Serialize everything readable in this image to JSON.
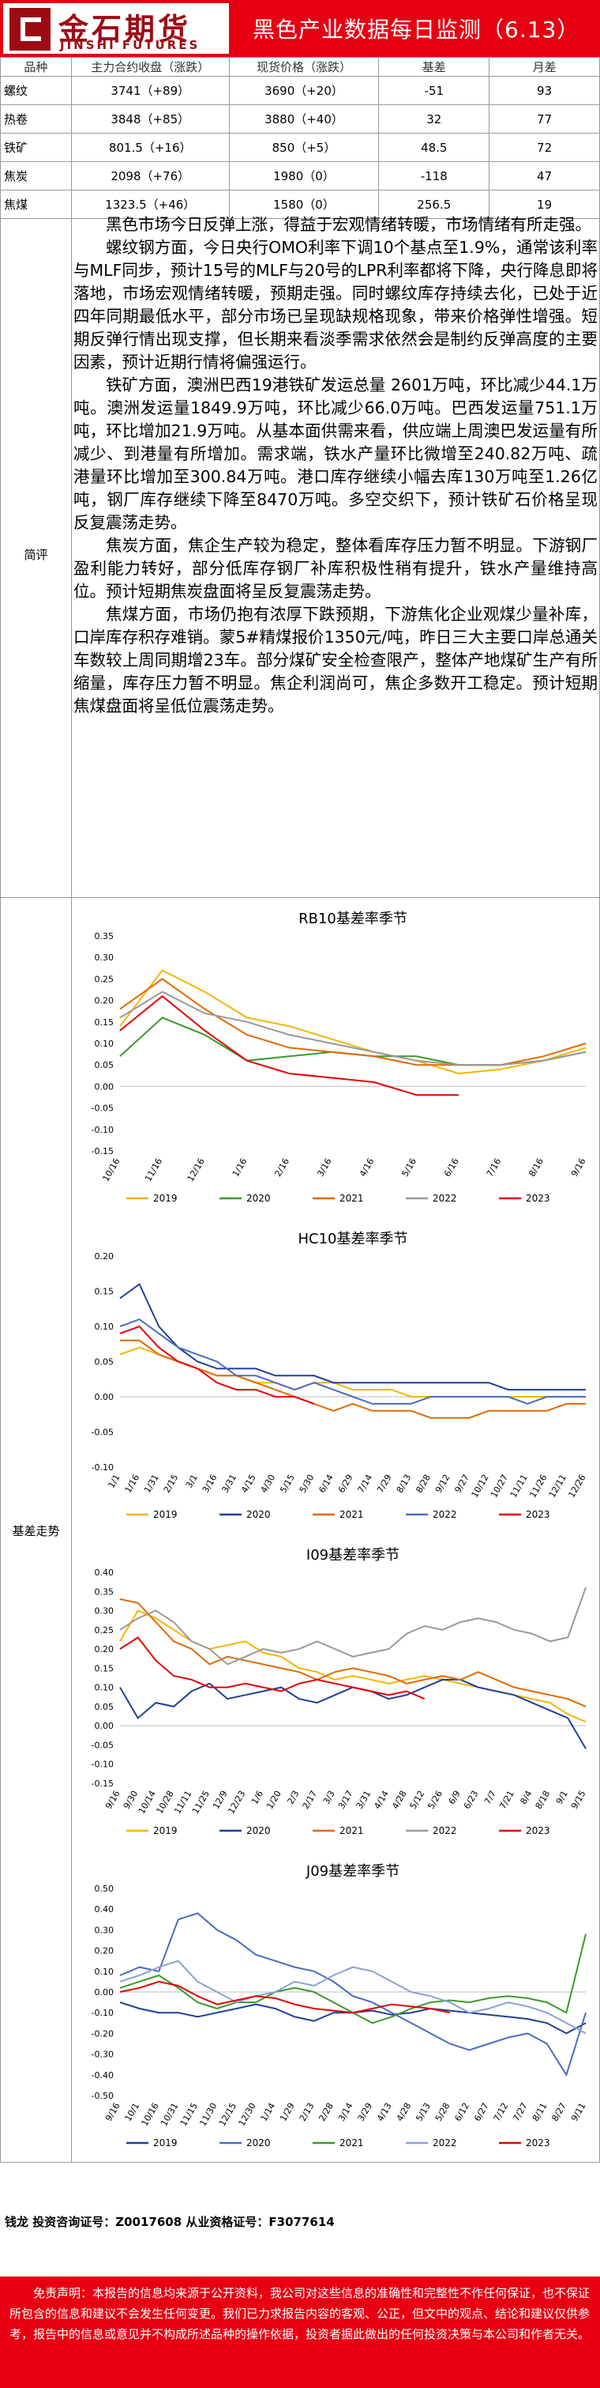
{
  "header": {
    "logo_cn": "金石期货",
    "logo_en": "JINSHI FUTURES",
    "title": "黑色产业数据每日监测（6.13）"
  },
  "price_table": {
    "headers": [
      "品种",
      "主力合约收盘（涨跌）",
      "现货价格（涨跌）",
      "基差",
      "月差"
    ],
    "rows": [
      {
        "name": "螺纹",
        "futures": "3741（+89）",
        "spot": "3690（+20）",
        "basis": "-51",
        "spread": "93"
      },
      {
        "name": "热卷",
        "futures": "3848（+85）",
        "spot": "3880（+40）",
        "basis": "32",
        "spread": "77"
      },
      {
        "name": "铁矿",
        "futures": "801.5（+16）",
        "spot": "850（+5）",
        "basis": "48.5",
        "spread": "72"
      },
      {
        "name": "焦炭",
        "futures": "2098（+76）",
        "spot": "1980（0）",
        "basis": "-118",
        "spread": "47"
      },
      {
        "name": "焦煤",
        "futures": "1323.5（+46）",
        "spot": "1580（0）",
        "basis": "256.5",
        "spread": "19"
      }
    ]
  },
  "commentary": {
    "label": "简评",
    "paragraphs": [
      "黑色市场今日反弹上涨，得益于宏观情绪转暖，市场情绪有所走强。",
      "螺纹钢方面，今日央行OMO利率下调10个基点至1.9%，通常该利率与MLF同步，预计15号的MLF与20号的LPR利率都将下降，央行降息即将落地，市场宏观情绪转暖，预期走强。同时螺纹库存持续去化，已处于近四年同期最低水平，部分市场已呈现缺规格现象，带来价格弹性增强。短期反弹行情出现支撑，但长期来看淡季需求依然会是制约反弹高度的主要因素，预计近期行情将偏强运行。",
      "铁矿方面，澳洲巴西19港铁矿发运总量 2601万吨，环比减少44.1万吨。澳洲发运量1849.9万吨，环比减少66.0万吨。巴西发运量751.1万吨，环比增加21.9万吨。从基本面供需来看，供应端上周澳巴发运量有所减少、到港量有所增加。需求端，铁水产量环比微增至240.82万吨、疏港量环比增加至300.84万吨。港口库存继续小幅去库130万吨至1.26亿吨，钢厂库存继续下降至8470万吨。多空交织下，预计铁矿石价格呈现反复震荡走势。",
      "焦炭方面，焦企生产较为稳定，整体看库存压力暂不明显。下游钢厂盈利能力转好，部分低库存钢厂补库积极性稍有提升，铁水产量维持高位。预计短期焦炭盘面将呈反复震荡走势。",
      "焦煤方面，市场仍抱有浓厚下跌预期，下游焦化企业观煤少量补库，口岸库存积存难销。蒙5#精煤报价1350元/吨，昨日三大主要口岸总通关车数较上周同期增23车。部分煤矿安全检查限产，整体产地煤矿生产有所缩量，库存压力暂不明显。焦企利润尚可，焦企多数开工稳定。预计短期焦煤盘面将呈低位震荡走势。"
    ]
  },
  "basis_section_label": "基差走势",
  "colors": {
    "2019": "#f5b400",
    "2020": "#1f3f99",
    "2021": "#e06a00",
    "2022": "#4a6bc0",
    "2023": "#e60000",
    "2020_alt": "#3a9a2a",
    "2022_alt": "#999999",
    "2021_alt": "#3a9a2a"
  },
  "chart_data": [
    {
      "type": "line",
      "title": "RB10基差率季节",
      "x": [
        "10/16",
        "11/16",
        "12/16",
        "1/16",
        "2/16",
        "3/16",
        "4/16",
        "5/16",
        "6/16",
        "7/16",
        "8/16",
        "9/16"
      ],
      "ylim": [
        -0.15,
        0.35
      ],
      "yticks": [
        -0.15,
        -0.1,
        -0.05,
        0.0,
        0.05,
        0.1,
        0.15,
        0.2,
        0.25,
        0.3,
        0.35
      ],
      "series": [
        {
          "name": "2019",
          "color": "#f5b400",
          "values": [
            0.14,
            0.27,
            0.22,
            0.16,
            0.14,
            0.11,
            0.08,
            0.06,
            0.03,
            0.04,
            0.06,
            0.09
          ]
        },
        {
          "name": "2020",
          "color": "#3a9a2a",
          "values": [
            0.07,
            0.16,
            0.12,
            0.06,
            0.07,
            0.08,
            0.07,
            0.07,
            0.05,
            0.05,
            0.06,
            0.08
          ]
        },
        {
          "name": "2021",
          "color": "#e06a00",
          "values": [
            0.18,
            0.25,
            0.18,
            0.12,
            0.09,
            0.08,
            0.07,
            0.05,
            0.05,
            0.05,
            0.07,
            0.1
          ]
        },
        {
          "name": "2022",
          "color": "#999999",
          "values": [
            0.16,
            0.22,
            0.17,
            0.15,
            0.12,
            0.1,
            0.08,
            0.06,
            0.05,
            0.05,
            0.06,
            0.08
          ]
        },
        {
          "name": "2023",
          "color": "#e60000",
          "values": [
            0.13,
            0.21,
            0.13,
            0.06,
            0.03,
            0.02,
            0.01,
            -0.02,
            -0.02,
            null,
            null,
            null
          ]
        }
      ]
    },
    {
      "type": "line",
      "title": "HC10基差率季节",
      "x": [
        "1/1",
        "1/16",
        "1/31",
        "2/15",
        "3/1",
        "3/16",
        "3/31",
        "4/15",
        "4/30",
        "5/15",
        "5/30",
        "6/14",
        "6/29",
        "7/14",
        "7/29",
        "8/13",
        "8/28",
        "9/12",
        "9/27",
        "10/12",
        "10/27",
        "11/11",
        "11/26",
        "12/11",
        "12/26"
      ],
      "ylim": [
        -0.1,
        0.2
      ],
      "yticks": [
        -0.1,
        -0.05,
        0.0,
        0.05,
        0.1,
        0.15,
        0.2
      ],
      "series": [
        {
          "name": "2019",
          "color": "#f5b400",
          "values": [
            0.06,
            0.07,
            0.06,
            0.05,
            0.04,
            0.03,
            0.03,
            0.02,
            0.02,
            0.01,
            0.02,
            0.02,
            0.01,
            0.01,
            0.01,
            0.0,
            0.0,
            0.0,
            0.0,
            0.0,
            0.0,
            0.0,
            0.0,
            0.0,
            0.0
          ]
        },
        {
          "name": "2020",
          "color": "#1f3f99",
          "values": [
            0.14,
            0.16,
            0.1,
            0.07,
            0.05,
            0.04,
            0.04,
            0.04,
            0.03,
            0.03,
            0.03,
            0.02,
            0.02,
            0.02,
            0.02,
            0.02,
            0.02,
            0.02,
            0.02,
            0.02,
            0.01,
            0.01,
            0.01,
            0.01,
            0.01
          ]
        },
        {
          "name": "2021",
          "color": "#e06a00",
          "values": [
            0.08,
            0.08,
            0.06,
            0.05,
            0.04,
            0.03,
            0.03,
            0.02,
            0.01,
            0.0,
            -0.01,
            -0.02,
            -0.01,
            -0.02,
            -0.02,
            -0.02,
            -0.03,
            -0.03,
            -0.03,
            -0.02,
            -0.02,
            -0.02,
            -0.02,
            -0.01,
            -0.01
          ]
        },
        {
          "name": "2022",
          "color": "#4a6bc0",
          "values": [
            0.1,
            0.11,
            0.09,
            0.07,
            0.06,
            0.05,
            0.03,
            0.03,
            0.02,
            0.01,
            0.02,
            0.01,
            0.0,
            -0.01,
            -0.01,
            -0.01,
            0.0,
            0.0,
            0.0,
            0.0,
            0.0,
            -0.01,
            0.0,
            0.0,
            0.0
          ]
        },
        {
          "name": "2023",
          "color": "#e60000",
          "values": [
            0.09,
            0.1,
            0.07,
            0.05,
            0.04,
            0.02,
            0.01,
            0.01,
            0.0,
            0.0,
            -0.01,
            null,
            null,
            null,
            null,
            null,
            null,
            null,
            null,
            null,
            null,
            null,
            null,
            null,
            null
          ]
        }
      ]
    },
    {
      "type": "line",
      "title": "I09基差率季节",
      "x": [
        "9/16",
        "9/30",
        "10/14",
        "10/28",
        "11/11",
        "11/25",
        "12/9",
        "12/23",
        "1/6",
        "1/20",
        "2/3",
        "2/17",
        "3/3",
        "3/17",
        "3/31",
        "4/14",
        "4/28",
        "5/12",
        "5/26",
        "6/9",
        "6/23",
        "7/7",
        "7/21",
        "8/4",
        "8/18",
        "9/1",
        "9/15"
      ],
      "ylim": [
        -0.15,
        0.4
      ],
      "yticks": [
        -0.15,
        -0.1,
        -0.05,
        0.0,
        0.05,
        0.1,
        0.15,
        0.2,
        0.25,
        0.3,
        0.35,
        0.4
      ],
      "series": [
        {
          "name": "2019",
          "color": "#f5b400",
          "values": [
            0.22,
            0.3,
            0.28,
            0.25,
            0.22,
            0.2,
            0.21,
            0.22,
            0.19,
            0.18,
            0.15,
            0.14,
            0.12,
            0.13,
            0.12,
            0.11,
            0.12,
            0.13,
            0.12,
            0.11,
            0.1,
            0.09,
            0.08,
            0.07,
            0.06,
            0.03,
            0.01
          ]
        },
        {
          "name": "2020",
          "color": "#1f3f99",
          "values": [
            0.1,
            0.02,
            0.06,
            0.05,
            0.09,
            0.11,
            0.07,
            0.08,
            0.09,
            0.1,
            0.07,
            0.06,
            0.08,
            0.1,
            0.09,
            0.07,
            0.08,
            0.1,
            0.12,
            0.12,
            0.1,
            0.09,
            0.08,
            0.06,
            0.04,
            0.02,
            -0.06
          ]
        },
        {
          "name": "2021",
          "color": "#e06a00",
          "values": [
            0.33,
            0.32,
            0.27,
            0.22,
            0.2,
            0.16,
            0.18,
            0.17,
            0.16,
            0.15,
            0.14,
            0.12,
            0.14,
            0.15,
            0.14,
            0.13,
            0.11,
            0.12,
            0.13,
            0.12,
            0.14,
            0.12,
            0.1,
            0.09,
            0.08,
            0.07,
            0.05
          ]
        },
        {
          "name": "2022",
          "color": "#999999",
          "values": [
            0.25,
            0.28,
            0.3,
            0.27,
            0.22,
            0.2,
            0.16,
            0.18,
            0.2,
            0.19,
            0.2,
            0.22,
            0.2,
            0.18,
            0.19,
            0.2,
            0.24,
            0.26,
            0.25,
            0.27,
            0.28,
            0.27,
            0.25,
            0.24,
            0.22,
            0.23,
            0.36
          ]
        },
        {
          "name": "2023",
          "color": "#e60000",
          "values": [
            0.2,
            0.23,
            0.17,
            0.13,
            0.12,
            0.1,
            0.1,
            0.11,
            0.1,
            0.09,
            0.11,
            0.12,
            0.11,
            0.1,
            0.09,
            0.08,
            0.09,
            0.07,
            null,
            null,
            null,
            null,
            null,
            null,
            null,
            null,
            null
          ]
        }
      ]
    },
    {
      "type": "line",
      "title": "J09基差率季节",
      "x": [
        "9/16",
        "10/1",
        "10/16",
        "10/31",
        "11/15",
        "11/30",
        "12/15",
        "12/30",
        "1/14",
        "1/29",
        "2/13",
        "2/28",
        "3/14",
        "3/29",
        "4/13",
        "4/28",
        "5/13",
        "5/28",
        "6/12",
        "6/27",
        "7/12",
        "7/27",
        "8/11",
        "8/27",
        "9/11"
      ],
      "ylim": [
        -0.5,
        0.5
      ],
      "yticks": [
        -0.5,
        -0.4,
        -0.3,
        -0.2,
        -0.1,
        0.0,
        0.1,
        0.2,
        0.3,
        0.4,
        0.5
      ],
      "series": [
        {
          "name": "2019",
          "color": "#1f3f99",
          "values": [
            -0.05,
            -0.08,
            -0.1,
            -0.1,
            -0.12,
            -0.1,
            -0.08,
            -0.06,
            -0.08,
            -0.12,
            -0.14,
            -0.1,
            -0.1,
            -0.09,
            -0.11,
            -0.1,
            -0.08,
            -0.09,
            -0.1,
            -0.11,
            -0.12,
            -0.13,
            -0.15,
            -0.2,
            -0.15
          ]
        },
        {
          "name": "2020",
          "color": "#4a6bc0",
          "values": [
            0.08,
            0.12,
            0.1,
            0.35,
            0.38,
            0.3,
            0.25,
            0.18,
            0.15,
            0.12,
            0.1,
            0.05,
            -0.02,
            -0.05,
            -0.1,
            -0.15,
            -0.2,
            -0.25,
            -0.28,
            -0.25,
            -0.22,
            -0.2,
            -0.25,
            -0.4,
            -0.1
          ]
        },
        {
          "name": "2021",
          "color": "#3a9a2a",
          "values": [
            0.02,
            0.05,
            0.08,
            0.02,
            -0.05,
            -0.08,
            -0.05,
            -0.05,
            0.0,
            0.02,
            0.0,
            -0.05,
            -0.1,
            -0.15,
            -0.12,
            -0.08,
            -0.05,
            -0.04,
            -0.05,
            -0.03,
            -0.02,
            -0.03,
            -0.05,
            -0.1,
            0.28
          ]
        },
        {
          "name": "2022",
          "color": "#8aa0d8",
          "values": [
            0.05,
            0.08,
            0.12,
            0.15,
            0.05,
            0.0,
            -0.05,
            -0.02,
            0.0,
            0.05,
            0.03,
            0.08,
            0.12,
            0.1,
            0.05,
            0.0,
            -0.02,
            -0.05,
            -0.1,
            -0.08,
            -0.05,
            -0.07,
            -0.1,
            -0.15,
            -0.2
          ]
        },
        {
          "name": "2023",
          "color": "#e60000",
          "values": [
            0.0,
            0.02,
            0.05,
            0.03,
            -0.02,
            -0.06,
            -0.04,
            -0.02,
            -0.03,
            -0.06,
            -0.08,
            -0.09,
            -0.1,
            -0.08,
            -0.06,
            -0.07,
            -0.08,
            -0.1,
            null,
            null,
            null,
            null,
            null,
            null,
            null
          ]
        }
      ]
    }
  ],
  "footer": {
    "analyst": "钱龙 投资咨询证号：Z0017608 从业资格证号：F3077614",
    "disclaimer": "免责声明：本报告的信息均来源于公开资料，我公司对这些信息的准确性和完整性不作任何保证，也不保证所包含的信息和建议不会发生任何变更。我们已力求报告内容的客观、公正，但文中的观点、结论和建议仅供参考，报告中的信息或意见并不构成所述品种的操作依据，投资者据此做出的任何投资决策与本公司和作者无关。"
  }
}
